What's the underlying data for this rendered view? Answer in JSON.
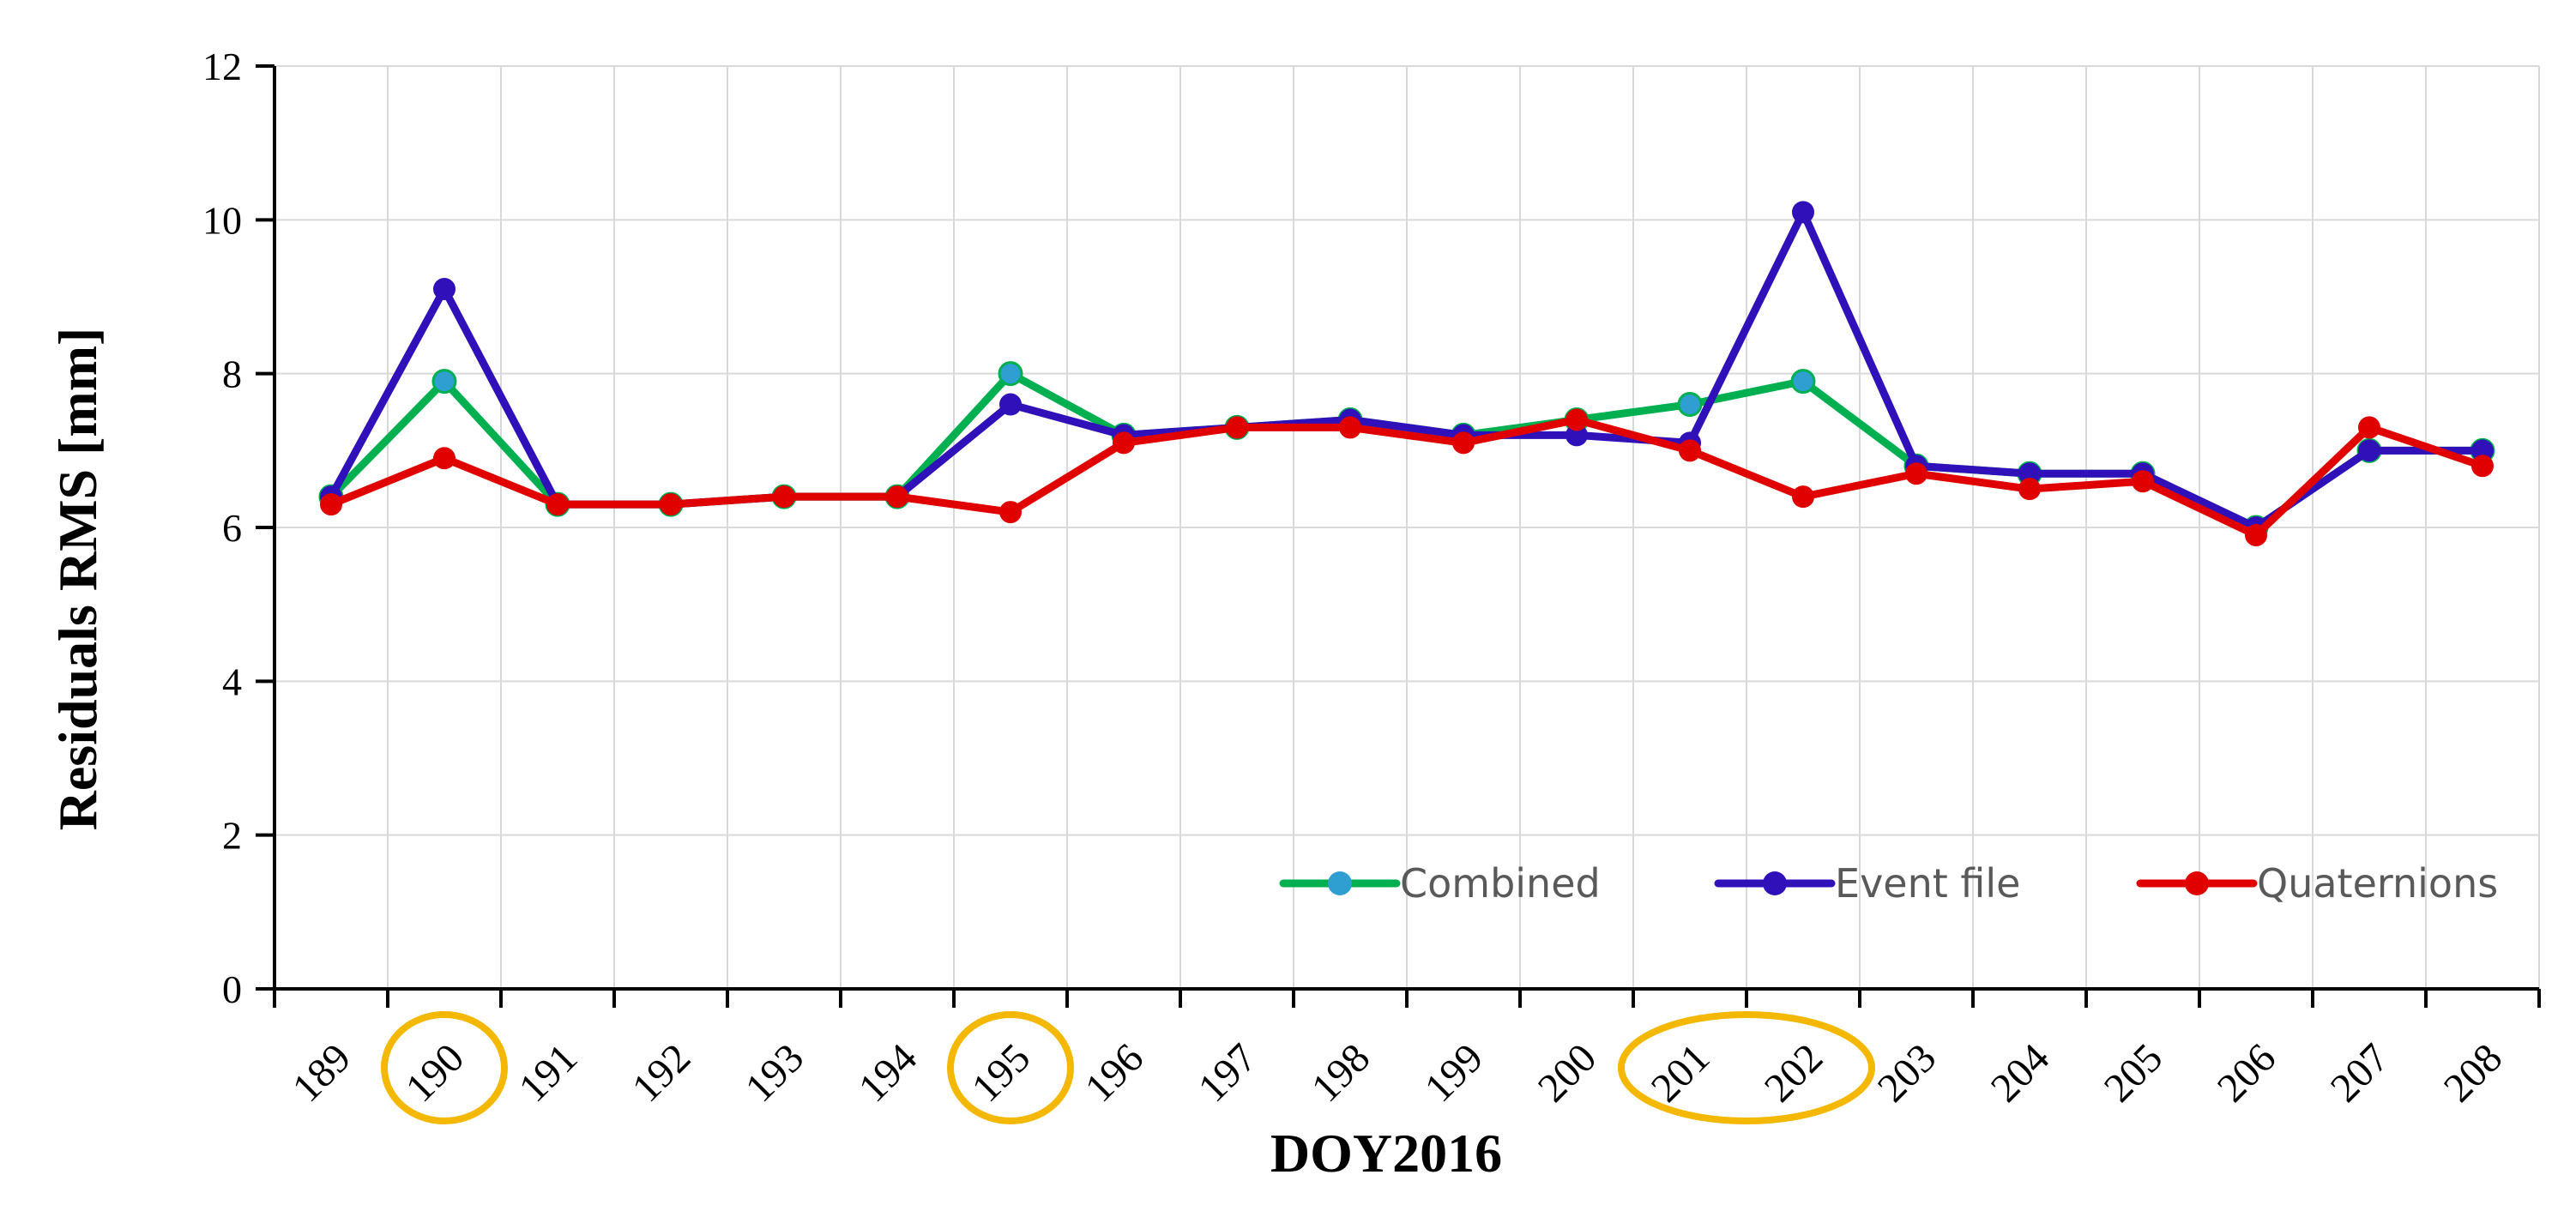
{
  "chart_data": {
    "type": "line",
    "xlabel": "DOY2016",
    "ylabel": "Residuals RMS [mm]",
    "ylim": [
      0,
      12
    ],
    "yticks": [
      0,
      2,
      4,
      6,
      8,
      10,
      12
    ],
    "grid": true,
    "legend_position": "bottom-right",
    "categories": [
      "189",
      "190",
      "191",
      "192",
      "193",
      "194",
      "195",
      "196",
      "197",
      "198",
      "199",
      "200",
      "201",
      "202",
      "203",
      "204",
      "205",
      "206",
      "207",
      "208"
    ],
    "highlighted_categories": [
      [
        "190"
      ],
      [
        "195"
      ],
      [
        "201",
        "202"
      ]
    ],
    "series": [
      {
        "name": "Combined",
        "color": "#00b050",
        "marker_color": "#2e9fd0",
        "values": [
          6.4,
          7.9,
          6.3,
          6.3,
          6.4,
          6.4,
          8.0,
          7.2,
          7.3,
          7.4,
          7.2,
          7.4,
          7.6,
          7.9,
          6.8,
          6.7,
          6.7,
          6.0,
          7.0,
          7.0
        ]
      },
      {
        "name": "Event file",
        "color": "#3010b8",
        "marker_color": "#3010b8",
        "values": [
          6.4,
          9.1,
          6.3,
          6.3,
          6.4,
          6.4,
          7.6,
          7.2,
          7.3,
          7.4,
          7.2,
          7.2,
          7.1,
          10.1,
          6.8,
          6.7,
          6.7,
          6.0,
          7.0,
          7.0
        ]
      },
      {
        "name": "Quaternions",
        "color": "#e00000",
        "marker_color": "#e00000",
        "values": [
          6.3,
          6.9,
          6.3,
          6.3,
          6.4,
          6.4,
          6.2,
          7.1,
          7.3,
          7.3,
          7.1,
          7.4,
          7.0,
          6.4,
          6.7,
          6.5,
          6.6,
          5.9,
          7.3,
          6.8
        ]
      }
    ],
    "highlight_color": "#f5b800"
  }
}
